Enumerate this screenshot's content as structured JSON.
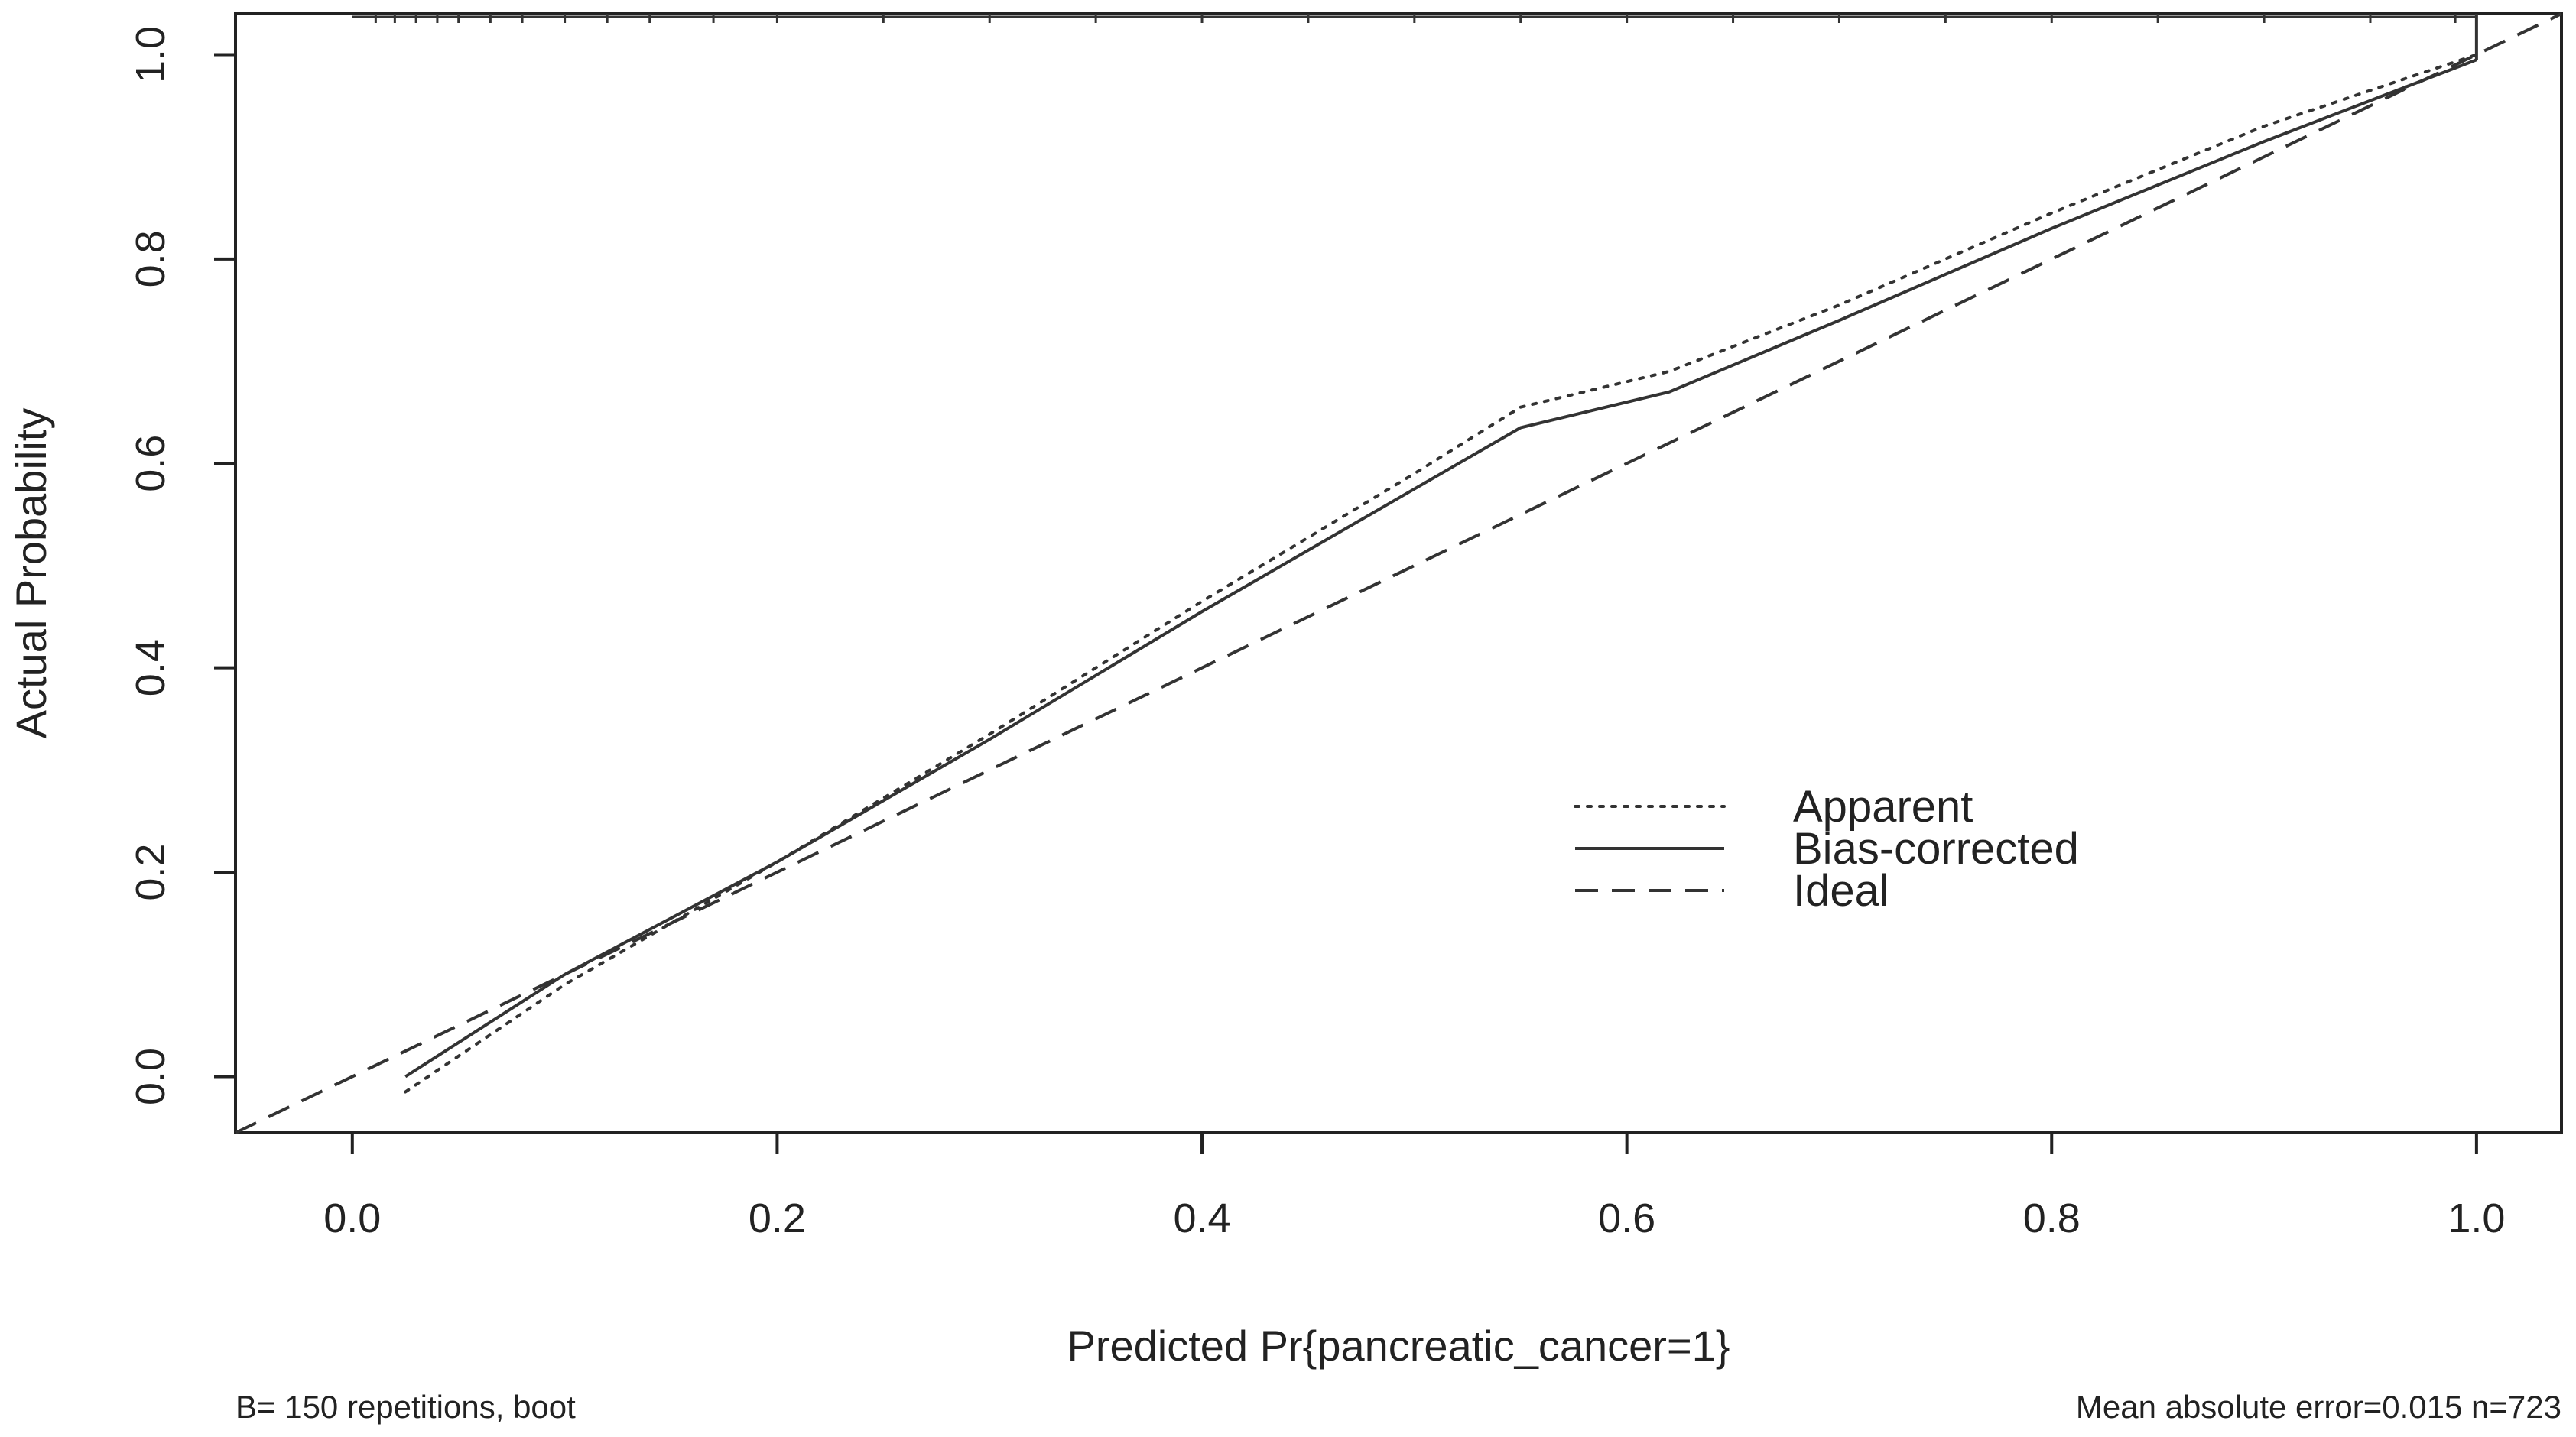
{
  "chart_data": {
    "type": "line",
    "title": "",
    "xlabel": "Predicted Pr{pancreatic_cancer=1}",
    "ylabel": "Actual Probability",
    "xlim": [
      -0.055,
      1.04
    ],
    "ylim": [
      -0.055,
      1.04
    ],
    "x_ticks": [
      "0.0",
      "0.2",
      "0.4",
      "0.6",
      "0.8",
      "1.0"
    ],
    "y_ticks": [
      "0.0",
      "0.2",
      "0.4",
      "0.6",
      "0.8",
      "1.0"
    ],
    "grid": false,
    "legend_position": "center-right",
    "series": [
      {
        "name": "Apparent",
        "style": "dotted",
        "x": [
          0.025,
          0.1,
          0.2,
          0.3,
          0.4,
          0.5,
          0.55,
          0.62,
          0.7,
          0.8,
          0.9,
          0.95,
          1.0
        ],
        "y": [
          -0.015,
          0.09,
          0.21,
          0.335,
          0.465,
          0.59,
          0.655,
          0.69,
          0.755,
          0.845,
          0.93,
          0.965,
          1.0
        ]
      },
      {
        "name": "Bias-corrected",
        "style": "solid",
        "x": [
          0.025,
          0.1,
          0.2,
          0.3,
          0.4,
          0.5,
          0.55,
          0.62,
          0.7,
          0.8,
          0.9,
          0.95,
          1.0
        ],
        "y": [
          0.0,
          0.1,
          0.21,
          0.33,
          0.455,
          0.575,
          0.635,
          0.67,
          0.74,
          0.83,
          0.915,
          0.955,
          0.995
        ]
      },
      {
        "name": "Ideal",
        "style": "dashed",
        "x": [
          -0.055,
          1.04
        ],
        "y": [
          -0.055,
          1.04
        ]
      }
    ],
    "rug_x": [
      0.011,
      0.02,
      0.03,
      0.04,
      0.05,
      0.065,
      0.08,
      0.1,
      0.12,
      0.14,
      0.17,
      0.2,
      0.25,
      0.3,
      0.35,
      0.4,
      0.45,
      0.5,
      0.55,
      0.6,
      0.65,
      0.7,
      0.75,
      0.8,
      0.85,
      0.9,
      0.95,
      0.99
    ],
    "vertical_line_x": 1.0
  },
  "footnote_left": "B= 150 repetitions, boot",
  "footnote_right": "Mean absolute error=0.015 n=723",
  "colors": {
    "line": "#333333",
    "axis": "#222222",
    "background": "#ffffff"
  }
}
